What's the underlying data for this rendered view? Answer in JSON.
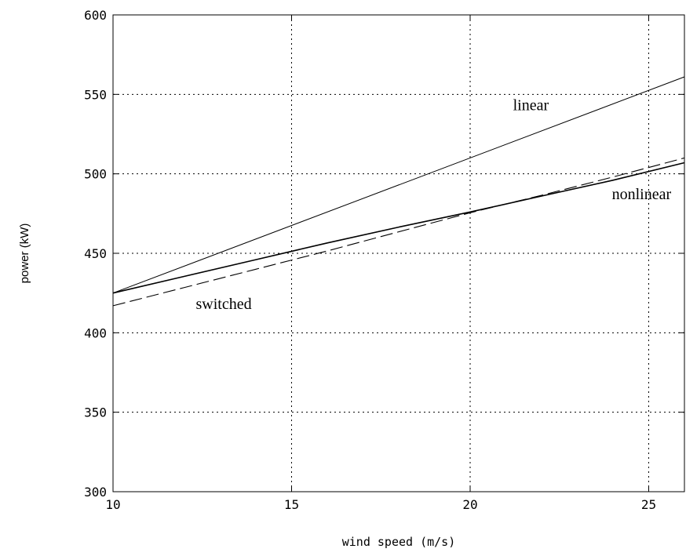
{
  "chart_data": {
    "type": "line",
    "title": "",
    "xlabel": "wind speed (m/s)",
    "ylabel": "power (kW)",
    "xlim": [
      10,
      26
    ],
    "ylim": [
      300,
      600
    ],
    "xticks": [
      10,
      15,
      20,
      25
    ],
    "yticks": [
      300,
      350,
      400,
      450,
      500,
      550,
      600
    ],
    "grid": true,
    "series": [
      {
        "style": "solid-thin",
        "x": [
          10,
          26
        ],
        "y": [
          425,
          561
        ]
      },
      {
        "style": "solid",
        "x": [
          10,
          12,
          14,
          16,
          18,
          20,
          22,
          24,
          26
        ],
        "y": [
          425,
          435.5,
          446,
          456.5,
          466.5,
          476,
          486,
          496,
          507
        ]
      },
      {
        "style": "dashed",
        "x": [
          10,
          12,
          14,
          16,
          18,
          20,
          22,
          24,
          26
        ],
        "y": [
          417,
          428.5,
          440,
          451.5,
          463.5,
          475.5,
          486.5,
          498,
          510
        ]
      }
    ],
    "annotations": [
      {
        "text": "linear",
        "x": 21.7,
        "y": 540
      },
      {
        "text": "nonlinear",
        "x": 24.8,
        "y": 484
      },
      {
        "text": "switched",
        "x": 13.1,
        "y": 415
      }
    ]
  }
}
